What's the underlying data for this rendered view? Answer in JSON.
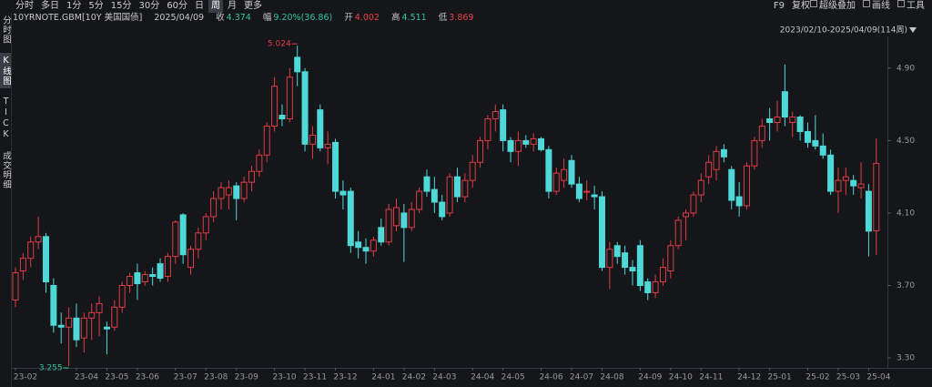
{
  "toolbar": {
    "periods": [
      "分时",
      "多日",
      "1分",
      "5分",
      "15分",
      "30分",
      "60分",
      "日",
      "周",
      "月",
      "更多"
    ],
    "tools": [
      "F9",
      "复权",
      "超级叠加",
      "画线",
      "工具"
    ]
  },
  "sidebar": [
    "分时图",
    "K线图",
    "TICK",
    "成交明细"
  ],
  "header": {
    "symbol": "10YRNOTE.GBM[10Y 美国国债]",
    "date": "2025/04/09",
    "close_label": "收",
    "change_label": "幅",
    "change": "9.20%(36.86)",
    "open_label": "开",
    "high_label": "高",
    "low_label": "低",
    "range": "2023/02/10-2025/04/09(114周)"
  },
  "chart_data": {
    "type": "candlestick",
    "categories": [
      "23-02",
      null,
      null,
      null,
      null,
      null,
      null,
      null,
      "23-04",
      null,
      null,
      null,
      "23-05",
      null,
      null,
      null,
      "23-06",
      null,
      null,
      null,
      null,
      "23-07",
      null,
      null,
      null,
      "23-08",
      null,
      null,
      null,
      "23-09",
      null,
      null,
      null,
      null,
      "23-10",
      null,
      null,
      null,
      "23-11",
      null,
      null,
      null,
      "23-12",
      null,
      null,
      null,
      null,
      "24-01",
      null,
      null,
      null,
      "24-02",
      null,
      null,
      null,
      "24-03",
      null,
      null,
      null,
      null,
      "24-04",
      null,
      null,
      null,
      "24-05",
      null,
      null,
      null,
      null,
      "24-06",
      null,
      null,
      null,
      "24-07",
      null,
      null,
      null,
      "24-08",
      null,
      null,
      null,
      null,
      "24-09",
      null,
      null,
      null,
      "24-10",
      null,
      null,
      null,
      "24-11",
      null,
      null,
      null,
      null,
      "24-12",
      null,
      null,
      null,
      "25-01",
      null,
      null,
      null,
      null,
      "25-02",
      null,
      null,
      null,
      "25-03",
      null,
      null,
      null,
      "25-04",
      null
    ],
    "open": [
      3.62,
      3.78,
      3.85,
      3.94,
      3.97,
      3.7,
      3.48,
      3.47,
      3.52,
      3.41,
      3.52,
      3.55,
      3.47,
      3.47,
      3.58,
      3.7,
      3.77,
      3.72,
      3.76,
      3.82,
      3.75,
      3.86,
      4.09,
      3.8,
      3.9,
      3.99,
      4.08,
      4.18,
      4.2,
      4.25,
      4.18,
      4.27,
      4.33,
      4.42,
      4.58,
      4.64,
      4.62,
      4.96,
      4.88,
      4.48,
      4.67,
      4.46,
      4.49,
      4.22,
      4.22,
      3.94,
      3.91,
      3.89,
      4.02,
      3.94,
      4.03,
      4.1,
      4.02,
      4.12,
      4.3,
      4.23,
      4.16,
      4.1,
      4.3,
      4.19,
      4.28,
      4.38,
      4.5,
      4.62,
      4.67,
      4.5,
      4.44,
      4.5,
      4.48,
      4.51,
      4.45,
      4.22,
      4.28,
      4.39,
      4.26,
      4.22,
      4.2,
      4.19,
      3.8,
      3.92,
      3.88,
      3.8,
      3.92,
      3.72,
      3.66,
      3.72,
      3.78,
      3.92,
      4.08,
      4.1,
      4.2,
      4.3,
      4.34,
      4.45,
      4.34,
      4.19,
      4.14,
      4.36,
      4.5,
      4.62,
      4.6,
      4.77,
      4.6,
      4.63,
      4.55,
      4.5,
      4.47,
      4.42,
      4.22,
      4.28,
      4.28,
      4.24,
      4.22,
      4.002
    ],
    "high": [
      3.8,
      3.88,
      3.97,
      4.08,
      3.99,
      3.74,
      3.55,
      3.58,
      3.6,
      3.55,
      3.6,
      3.64,
      3.5,
      3.62,
      3.72,
      3.77,
      3.82,
      3.78,
      3.8,
      3.85,
      3.88,
      4.06,
      4.1,
      3.92,
      4.02,
      4.1,
      4.22,
      4.27,
      4.28,
      4.27,
      4.3,
      4.36,
      4.45,
      4.6,
      4.85,
      4.7,
      4.9,
      5.024,
      4.9,
      4.58,
      4.7,
      4.55,
      4.51,
      4.28,
      4.24,
      4.0,
      3.96,
      3.97,
      4.07,
      4.15,
      4.18,
      4.15,
      4.16,
      4.24,
      4.34,
      4.3,
      4.2,
      4.32,
      4.35,
      4.32,
      4.42,
      4.52,
      4.64,
      4.7,
      4.7,
      4.52,
      4.55,
      4.53,
      4.54,
      4.52,
      4.47,
      4.35,
      4.4,
      4.42,
      4.3,
      4.28,
      4.25,
      4.22,
      3.94,
      3.94,
      3.92,
      3.84,
      3.95,
      3.74,
      3.76,
      3.85,
      3.95,
      4.08,
      4.12,
      4.22,
      4.32,
      4.42,
      4.47,
      4.48,
      4.36,
      4.27,
      4.38,
      4.52,
      4.62,
      4.68,
      4.72,
      4.92,
      4.66,
      4.64,
      4.6,
      4.64,
      4.54,
      4.45,
      4.35,
      4.35,
      4.31,
      4.38,
      4.26,
      4.511
    ],
    "low": [
      3.58,
      3.73,
      3.8,
      3.9,
      3.66,
      3.44,
      3.38,
      3.255,
      3.36,
      3.33,
      3.4,
      3.42,
      3.32,
      3.45,
      3.55,
      3.66,
      3.62,
      3.7,
      3.7,
      3.72,
      3.72,
      3.82,
      3.82,
      3.76,
      3.85,
      3.95,
      4.05,
      4.12,
      4.12,
      4.06,
      4.16,
      4.22,
      4.3,
      4.38,
      4.55,
      4.58,
      4.6,
      4.8,
      4.44,
      4.4,
      4.44,
      4.37,
      4.18,
      4.12,
      3.88,
      3.85,
      3.82,
      3.86,
      3.92,
      3.92,
      4.0,
      3.83,
      4.0,
      4.1,
      4.19,
      4.1,
      4.06,
      4.08,
      4.16,
      4.16,
      4.24,
      4.35,
      4.45,
      4.55,
      4.44,
      4.38,
      4.36,
      4.46,
      4.44,
      4.44,
      4.18,
      4.2,
      4.24,
      4.24,
      4.16,
      4.17,
      4.12,
      3.78,
      3.68,
      3.82,
      3.76,
      3.7,
      3.67,
      3.62,
      3.63,
      3.7,
      3.74,
      3.9,
      3.95,
      4.08,
      4.16,
      4.26,
      4.28,
      4.38,
      4.12,
      4.08,
      4.12,
      4.34,
      4.46,
      4.5,
      4.55,
      4.58,
      4.52,
      4.5,
      4.46,
      4.45,
      4.4,
      4.2,
      4.1,
      4.2,
      4.2,
      4.18,
      3.86,
      3.869
    ],
    "close": [
      3.77,
      3.85,
      3.94,
      3.97,
      3.72,
      3.48,
      3.47,
      3.52,
      3.4,
      3.52,
      3.55,
      3.6,
      3.46,
      3.58,
      3.7,
      3.75,
      3.71,
      3.76,
      3.75,
      3.74,
      3.86,
      4.05,
      3.87,
      3.9,
      3.99,
      4.08,
      4.18,
      4.24,
      4.24,
      4.18,
      4.27,
      4.33,
      4.42,
      4.58,
      4.8,
      4.62,
      4.85,
      4.88,
      4.48,
      4.53,
      4.46,
      4.48,
      4.22,
      4.2,
      3.92,
      3.91,
      3.89,
      3.95,
      3.94,
      4.12,
      4.13,
      4.02,
      4.12,
      4.22,
      4.22,
      4.16,
      4.08,
      4.3,
      4.19,
      4.28,
      4.38,
      4.5,
      4.62,
      4.66,
      4.5,
      4.44,
      4.5,
      4.48,
      4.51,
      4.45,
      4.22,
      4.32,
      4.34,
      4.26,
      4.18,
      4.22,
      4.19,
      3.8,
      3.9,
      3.86,
      3.8,
      3.78,
      3.7,
      3.66,
      3.72,
      3.8,
      3.92,
      4.06,
      4.1,
      4.2,
      4.28,
      4.38,
      4.44,
      4.41,
      4.17,
      4.14,
      4.36,
      4.5,
      4.58,
      4.6,
      4.63,
      4.63,
      4.63,
      4.55,
      4.49,
      4.47,
      4.42,
      4.22,
      4.28,
      4.3,
      4.25,
      4.26,
      4.0,
      4.374
    ],
    "up_color": "#e03c44",
    "down_color": "#4fd8d8",
    "ylim": [
      3.25,
      5.05
    ],
    "yticks": [
      {
        "value": 3.3,
        "label": "3.30"
      },
      {
        "value": 3.7,
        "label": "3.70"
      },
      {
        "value": 4.1,
        "label": "4.10"
      },
      {
        "value": 4.5,
        "label": "4.50"
      },
      {
        "value": 4.9,
        "label": "4.90"
      }
    ],
    "grid": false
  }
}
